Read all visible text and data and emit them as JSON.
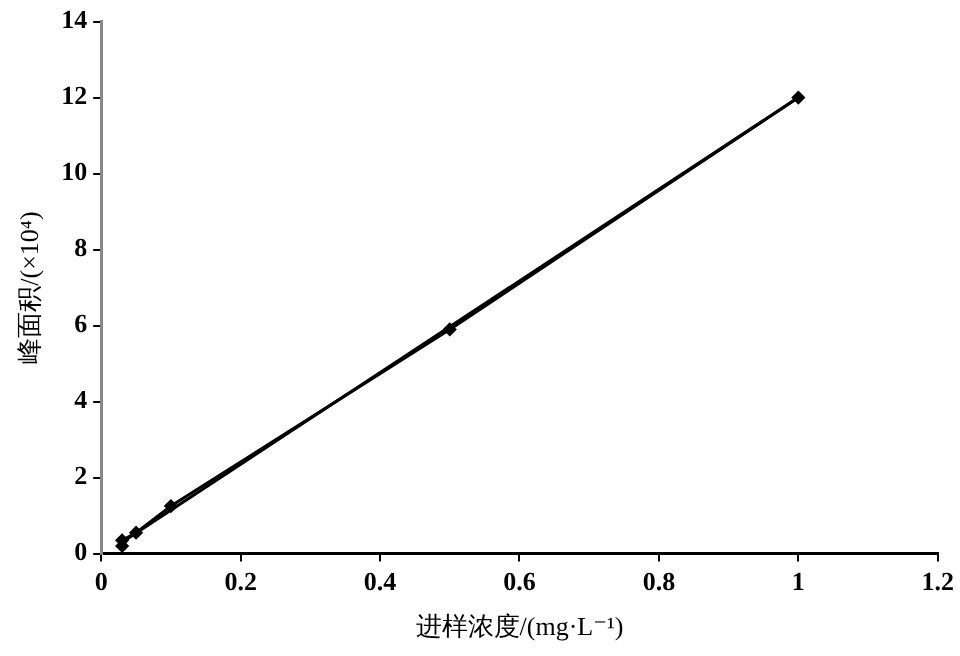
{
  "chart_data": {
    "type": "line",
    "xlabel": "进样浓度/(mg·L⁻¹)",
    "ylabel": "峰面积/(×10⁴)",
    "xlim": [
      0,
      1.2
    ],
    "xticks": [
      0,
      0.2,
      0.4,
      0.6,
      0.8,
      1,
      1.2
    ],
    "ylim": [
      0,
      14
    ],
    "yticks": [
      0,
      2,
      4,
      6,
      8,
      10,
      12,
      14
    ],
    "grid": false,
    "legend": false,
    "series": [
      {
        "color": "#000000",
        "marker": "diamond",
        "x": [
          0.03,
          0.03,
          0.05,
          0.1,
          0.5,
          1.0
        ],
        "values": [
          0.2,
          0.35,
          0.55,
          1.25,
          5.9,
          12.0
        ]
      },
      {
        "color": "#000000",
        "marker": "none",
        "x": [
          0.03,
          1.0
        ],
        "values": [
          0.3,
          12.0
        ]
      }
    ]
  }
}
